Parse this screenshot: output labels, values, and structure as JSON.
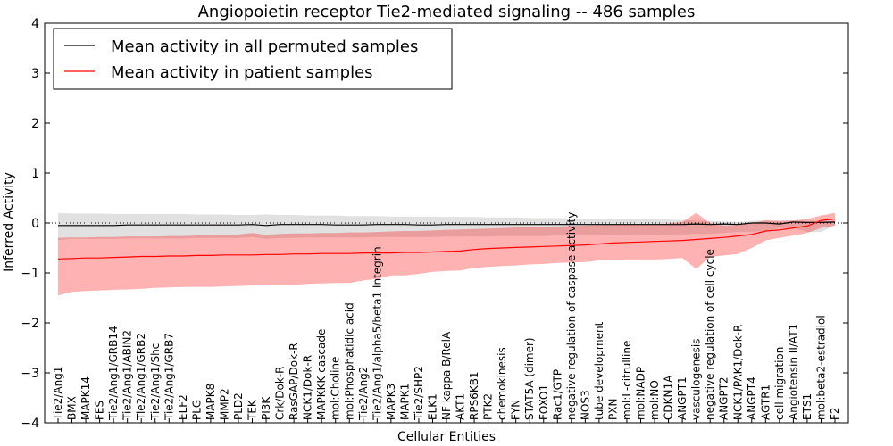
{
  "chart_data": {
    "type": "line",
    "title": "Angiopoietin receptor Tie2-mediated signaling -- 486 samples",
    "xlabel": "Cellular Entities",
    "ylabel": "Inferred Activity",
    "ylim": [
      -4,
      4
    ],
    "yticks": [
      -4,
      -3,
      -2,
      -1,
      0,
      1,
      2,
      3,
      4
    ],
    "baseline": 0,
    "legend": {
      "placement": "top-left",
      "entries": [
        {
          "label": "Mean activity in all permuted samples",
          "color": "#000000"
        },
        {
          "label": "Mean activity in patient samples",
          "color": "#ff0000"
        }
      ]
    },
    "categories": [
      "Tie2/Ang1",
      "BMX",
      "MAPK14",
      "FES",
      "Tie2/Ang1/GRB14",
      "Tie2/Ang1/ABIN2",
      "Tie2/Ang1/GRB2",
      "Tie2/Ang1/Shc",
      "Tie2/Ang1/GRB7",
      "ELF2",
      "PLG",
      "MAPK8",
      "MMP2",
      "PLD2",
      "TEK",
      "PI3K",
      "Crk/Dok-R",
      "RasGAP/Dok-R",
      "NCK1/Dok-R",
      "MAPKKK cascade",
      "mol:Choline",
      "mol:Phosphatidic acid",
      "Tie2/Ang2",
      "Tie2/Ang1/alpha5/beta1 Integrin",
      "MAPK3",
      "MAPK1",
      "Tie2/SHP2",
      "ELK1",
      "NF kappa B/RelA",
      "AKT1",
      "RPS6KB1",
      "PTK2",
      "chemokinesis",
      "FYN",
      "STAT5A (dimer)",
      "FOXO1",
      "Rac1/GTP",
      "negative regulation of caspase activity",
      "NOS3",
      "tube development",
      "PXN",
      "mol:L-citrulline",
      "mol:NADP",
      "mol:NO",
      "CDKN1A",
      "ANGPT1",
      "vasculogenesis",
      "negative regulation of cell cycle",
      "ANGPT2",
      "NCK1/PAK1/Dok-R",
      "ANGPT4",
      "AGTR1",
      "cell migration",
      "Angiotensin II/AT1",
      "ETS1",
      "mol:beta2-estradiol",
      "F2"
    ],
    "series": [
      {
        "name": "Mean activity in patient samples",
        "color": "#ff0000",
        "values": [
          -0.72,
          -0.71,
          -0.7,
          -0.7,
          -0.69,
          -0.68,
          -0.67,
          -0.67,
          -0.66,
          -0.66,
          -0.65,
          -0.65,
          -0.64,
          -0.64,
          -0.64,
          -0.63,
          -0.63,
          -0.62,
          -0.62,
          -0.61,
          -0.61,
          -0.61,
          -0.6,
          -0.6,
          -0.6,
          -0.59,
          -0.59,
          -0.58,
          -0.57,
          -0.56,
          -0.53,
          -0.51,
          -0.5,
          -0.49,
          -0.48,
          -0.47,
          -0.46,
          -0.45,
          -0.44,
          -0.42,
          -0.4,
          -0.39,
          -0.38,
          -0.37,
          -0.36,
          -0.35,
          -0.33,
          -0.31,
          -0.29,
          -0.26,
          -0.23,
          -0.16,
          -0.14,
          -0.1,
          -0.06,
          0.05,
          0.08
        ],
        "lower": [
          -1.45,
          -1.38,
          -1.36,
          -1.35,
          -1.34,
          -1.33,
          -1.32,
          -1.3,
          -1.29,
          -1.28,
          -1.28,
          -1.28,
          -1.27,
          -1.26,
          -1.25,
          -1.24,
          -1.23,
          -1.24,
          -1.22,
          -1.21,
          -1.2,
          -1.2,
          -1.15,
          -1.12,
          -1.05,
          -1.05,
          -1.02,
          -0.98,
          -0.96,
          -0.95,
          -0.9,
          -0.88,
          -0.86,
          -0.85,
          -0.83,
          -0.82,
          -0.8,
          -0.79,
          -0.78,
          -0.75,
          -0.74,
          -0.73,
          -0.73,
          -0.73,
          -0.72,
          -0.7,
          -0.92,
          -0.68,
          -0.65,
          -0.62,
          -0.5,
          -0.35,
          -0.3,
          -0.25,
          -0.2,
          -0.1,
          -0.05
        ],
        "upper": [
          -0.3,
          -0.29,
          -0.29,
          -0.28,
          -0.28,
          -0.27,
          -0.27,
          -0.27,
          -0.26,
          -0.26,
          -0.25,
          -0.25,
          -0.24,
          -0.23,
          -0.2,
          -0.24,
          -0.22,
          -0.21,
          -0.21,
          -0.2,
          -0.2,
          -0.19,
          -0.19,
          -0.18,
          -0.17,
          -0.16,
          -0.16,
          -0.15,
          -0.14,
          -0.13,
          -0.12,
          -0.11,
          -0.1,
          -0.09,
          -0.09,
          -0.08,
          -0.07,
          -0.06,
          -0.05,
          -0.04,
          -0.03,
          -0.03,
          -0.02,
          -0.02,
          -0.01,
          0.02,
          0.2,
          0.0,
          -0.05,
          -0.04,
          0.0,
          0.05,
          0.04,
          0.05,
          0.08,
          0.15,
          0.2
        ]
      },
      {
        "name": "Mean activity in all permuted samples",
        "color": "#000000",
        "values": [
          -0.05,
          -0.05,
          -0.05,
          -0.05,
          -0.05,
          -0.04,
          -0.04,
          -0.04,
          -0.04,
          -0.04,
          -0.04,
          -0.04,
          -0.04,
          -0.04,
          -0.03,
          -0.05,
          -0.03,
          -0.03,
          -0.03,
          -0.03,
          -0.04,
          -0.04,
          -0.04,
          -0.03,
          -0.03,
          -0.03,
          -0.04,
          -0.04,
          -0.03,
          -0.03,
          -0.03,
          -0.03,
          -0.03,
          -0.03,
          -0.03,
          -0.03,
          -0.03,
          -0.03,
          -0.03,
          -0.03,
          -0.03,
          -0.03,
          -0.03,
          -0.03,
          -0.03,
          -0.03,
          -0.02,
          -0.03,
          -0.02,
          -0.03,
          0.0,
          0.0,
          -0.02,
          0.02,
          0.01,
          0.01,
          0.02
        ],
        "lower": [
          -0.34,
          -0.32,
          -0.32,
          -0.32,
          -0.32,
          -0.31,
          -0.31,
          -0.31,
          -0.31,
          -0.31,
          -0.3,
          -0.3,
          -0.3,
          -0.3,
          -0.28,
          -0.32,
          -0.3,
          -0.3,
          -0.29,
          -0.29,
          -0.29,
          -0.29,
          -0.29,
          -0.28,
          -0.28,
          -0.28,
          -0.28,
          -0.28,
          -0.27,
          -0.27,
          -0.27,
          -0.27,
          -0.26,
          -0.26,
          -0.26,
          -0.26,
          -0.25,
          -0.25,
          -0.25,
          -0.25,
          -0.24,
          -0.24,
          -0.24,
          -0.24,
          -0.23,
          -0.23,
          -0.22,
          -0.22,
          -0.2,
          -0.18,
          -0.18,
          -0.15,
          -0.1,
          -0.1,
          -0.18,
          -0.18,
          -0.05
        ],
        "upper": [
          0.2,
          0.19,
          0.19,
          0.19,
          0.18,
          0.18,
          0.18,
          0.18,
          0.18,
          0.18,
          0.17,
          0.17,
          0.17,
          0.16,
          0.16,
          0.17,
          0.16,
          0.16,
          0.15,
          0.15,
          0.15,
          0.14,
          0.14,
          0.14,
          0.13,
          0.13,
          0.13,
          0.13,
          0.12,
          0.12,
          0.12,
          0.11,
          0.11,
          0.11,
          0.1,
          0.1,
          0.1,
          0.09,
          0.09,
          0.09,
          0.08,
          0.08,
          0.08,
          0.07,
          0.07,
          0.06,
          0.05,
          0.04,
          0.03,
          0.02,
          0.04,
          0.06,
          0.05,
          0.05,
          0.04,
          0.04,
          0.03
        ]
      }
    ]
  }
}
